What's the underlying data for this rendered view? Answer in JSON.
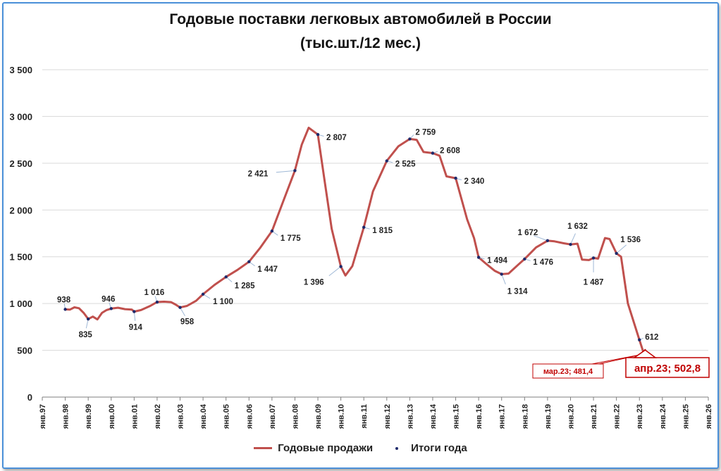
{
  "chart_data": {
    "type": "line",
    "title": "Годовые поставки легковых автомобилей в России",
    "subtitle": "(тыс.шт./12 мес.)",
    "xlabel": "",
    "ylabel": "",
    "ylim": [
      0,
      3500
    ],
    "yticks": [
      "0",
      "500",
      "1 000",
      "1 500",
      "2 000",
      "2 500",
      "3 000",
      "3 500"
    ],
    "xticks": [
      "янв.97",
      "янв.98",
      "янв.99",
      "янв.00",
      "янв.01",
      "янв.02",
      "янв.03",
      "янв.04",
      "янв.05",
      "янв.06",
      "янв.07",
      "янв.08",
      "янв.09",
      "янв.10",
      "янв.11",
      "янв.12",
      "янв.13",
      "янв.14",
      "янв.15",
      "янв.16",
      "янв.17",
      "янв.18",
      "янв.19",
      "янв.20",
      "янв.21",
      "янв.22",
      "янв.23",
      "янв.24",
      "янв.25",
      "янв.26"
    ],
    "grid": "horizontal",
    "legend_position": "bottom",
    "series": [
      {
        "name": "Годовые продажи",
        "color": "#c0504d",
        "points": [
          [
            1.0,
            938
          ],
          [
            1.2,
            935
          ],
          [
            1.4,
            960
          ],
          [
            1.6,
            950
          ],
          [
            1.8,
            900
          ],
          [
            2.0,
            835
          ],
          [
            2.2,
            860
          ],
          [
            2.4,
            830
          ],
          [
            2.6,
            900
          ],
          [
            2.8,
            930
          ],
          [
            3.0,
            946
          ],
          [
            3.3,
            955
          ],
          [
            3.6,
            940
          ],
          [
            3.9,
            935
          ],
          [
            4.0,
            914
          ],
          [
            4.3,
            930
          ],
          [
            4.7,
            975
          ],
          [
            5.0,
            1016
          ],
          [
            5.3,
            1020
          ],
          [
            5.6,
            1015
          ],
          [
            5.8,
            990
          ],
          [
            6.0,
            958
          ],
          [
            6.3,
            975
          ],
          [
            6.7,
            1030
          ],
          [
            7.0,
            1100
          ],
          [
            7.5,
            1200
          ],
          [
            8.0,
            1285
          ],
          [
            8.5,
            1360
          ],
          [
            9.0,
            1447
          ],
          [
            9.5,
            1600
          ],
          [
            10.0,
            1775
          ],
          [
            10.5,
            2100
          ],
          [
            11.0,
            2421
          ],
          [
            11.3,
            2700
          ],
          [
            11.6,
            2880
          ],
          [
            12.0,
            2807
          ],
          [
            12.3,
            2300
          ],
          [
            12.6,
            1800
          ],
          [
            13.0,
            1396
          ],
          [
            13.2,
            1300
          ],
          [
            13.5,
            1400
          ],
          [
            14.0,
            1815
          ],
          [
            14.4,
            2200
          ],
          [
            15.0,
            2525
          ],
          [
            15.5,
            2680
          ],
          [
            16.0,
            2759
          ],
          [
            16.3,
            2750
          ],
          [
            16.6,
            2620
          ],
          [
            17.0,
            2608
          ],
          [
            17.3,
            2580
          ],
          [
            17.6,
            2360
          ],
          [
            18.0,
            2340
          ],
          [
            18.5,
            1900
          ],
          [
            18.8,
            1700
          ],
          [
            19.0,
            1494
          ],
          [
            19.3,
            1430
          ],
          [
            19.7,
            1350
          ],
          [
            20.0,
            1314
          ],
          [
            20.3,
            1320
          ],
          [
            20.7,
            1410
          ],
          [
            21.0,
            1476
          ],
          [
            21.5,
            1600
          ],
          [
            22.0,
            1672
          ],
          [
            22.3,
            1665
          ],
          [
            22.7,
            1645
          ],
          [
            23.0,
            1632
          ],
          [
            23.3,
            1640
          ],
          [
            23.5,
            1470
          ],
          [
            23.8,
            1465
          ],
          [
            24.0,
            1487
          ],
          [
            24.2,
            1480
          ],
          [
            24.5,
            1700
          ],
          [
            24.7,
            1690
          ],
          [
            25.0,
            1536
          ],
          [
            25.2,
            1500
          ],
          [
            25.5,
            1000
          ],
          [
            26.0,
            612
          ],
          [
            26.17,
            481.4
          ],
          [
            26.25,
            502.8
          ]
        ]
      },
      {
        "name": "Итоги года",
        "color": "#1f2a6b",
        "labels": [
          {
            "x": 1.0,
            "y": 938,
            "text": "938"
          },
          {
            "x": 2.0,
            "y": 835,
            "text": "835"
          },
          {
            "x": 3.0,
            "y": 946,
            "text": "946"
          },
          {
            "x": 4.0,
            "y": 914,
            "text": "914"
          },
          {
            "x": 5.0,
            "y": 1016,
            "text": "1 016"
          },
          {
            "x": 6.0,
            "y": 958,
            "text": "958"
          },
          {
            "x": 7.0,
            "y": 1100,
            "text": "1 100"
          },
          {
            "x": 8.0,
            "y": 1285,
            "text": "1 285"
          },
          {
            "x": 9.0,
            "y": 1447,
            "text": "1 447"
          },
          {
            "x": 10.0,
            "y": 1775,
            "text": "1 775"
          },
          {
            "x": 11.0,
            "y": 2421,
            "text": "2 421"
          },
          {
            "x": 12.0,
            "y": 2807,
            "text": "2 807"
          },
          {
            "x": 13.0,
            "y": 1396,
            "text": "1 396"
          },
          {
            "x": 14.0,
            "y": 1815,
            "text": "1 815"
          },
          {
            "x": 15.0,
            "y": 2525,
            "text": "2 525"
          },
          {
            "x": 16.0,
            "y": 2759,
            "text": "2 759"
          },
          {
            "x": 17.0,
            "y": 2608,
            "text": "2 608"
          },
          {
            "x": 18.0,
            "y": 2340,
            "text": "2 340"
          },
          {
            "x": 19.0,
            "y": 1494,
            "text": "1 494"
          },
          {
            "x": 20.0,
            "y": 1314,
            "text": "1 314"
          },
          {
            "x": 21.0,
            "y": 1476,
            "text": "1 476"
          },
          {
            "x": 22.0,
            "y": 1672,
            "text": "1 672"
          },
          {
            "x": 23.0,
            "y": 1632,
            "text": "1 632"
          },
          {
            "x": 24.0,
            "y": 1487,
            "text": "1 487"
          },
          {
            "x": 25.0,
            "y": 1536,
            "text": "1 536"
          },
          {
            "x": 26.0,
            "y": 612,
            "text": "612"
          }
        ]
      }
    ],
    "callouts": [
      {
        "x": 26.17,
        "y": 481.4,
        "text": "мар.23;  481,4"
      },
      {
        "x": 26.25,
        "y": 502.8,
        "text": "апр.23;  502,8"
      }
    ]
  }
}
